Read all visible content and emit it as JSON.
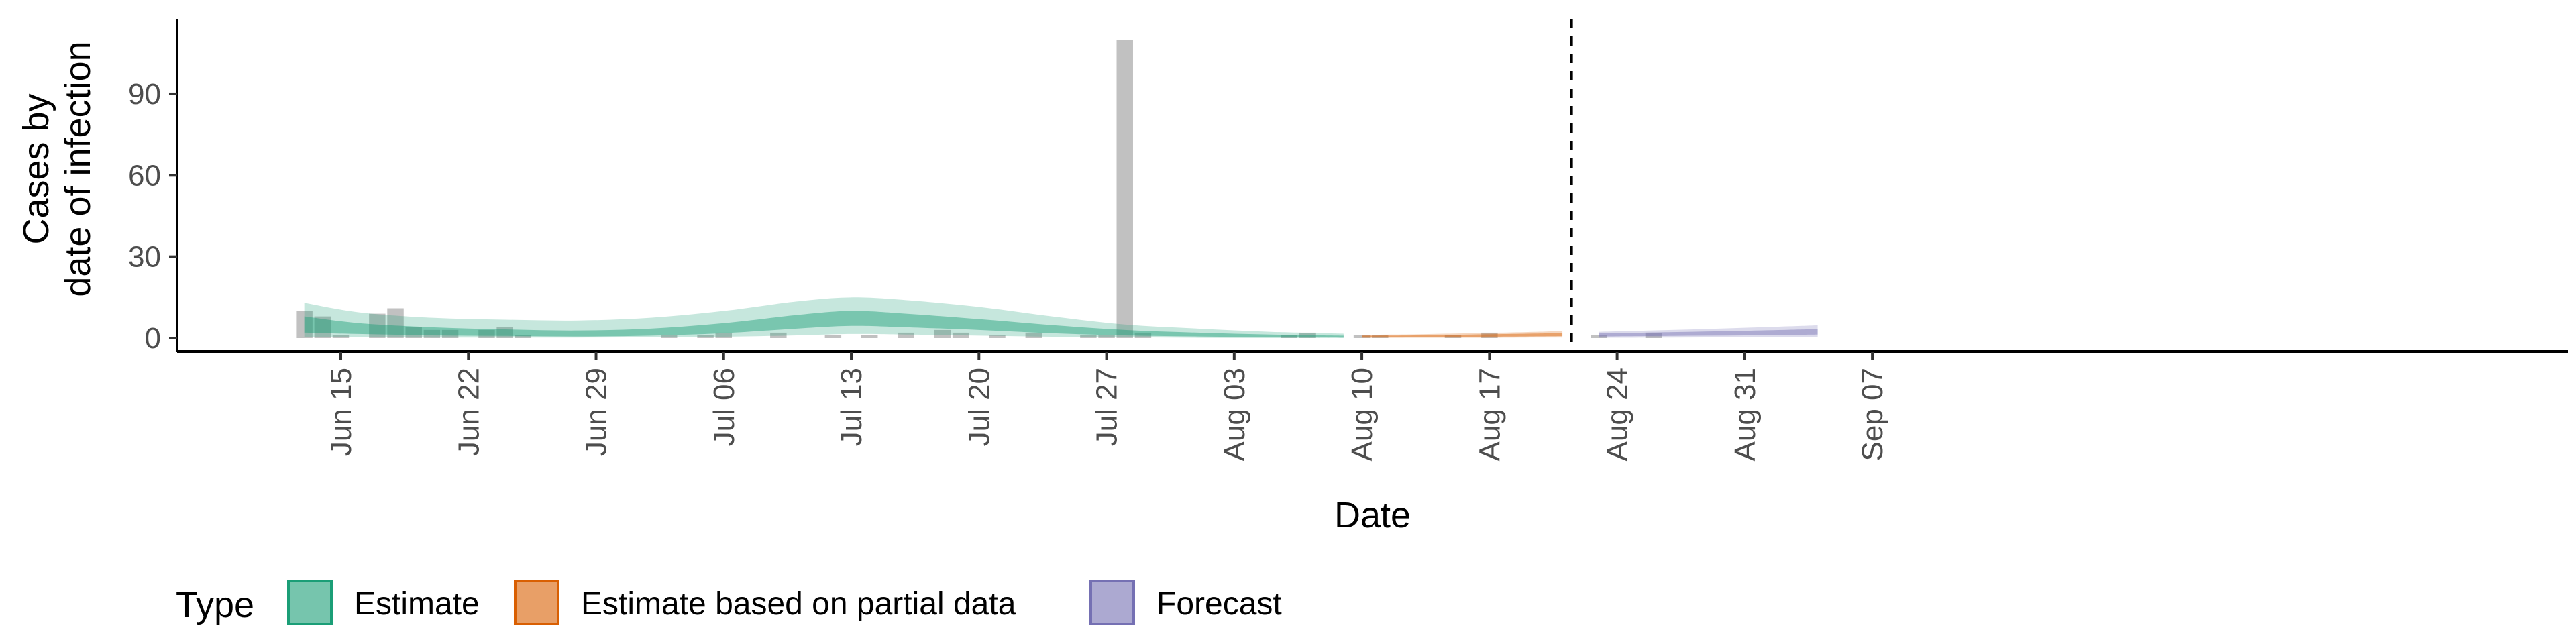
{
  "chart_data": {
    "type": "area",
    "title": "",
    "xlabel": "Date",
    "ylabel_lines": [
      "Cases by",
      "date of infection"
    ],
    "ylim": [
      -5,
      117
    ],
    "yticks": [
      0,
      30,
      60,
      90
    ],
    "x_start": "2020-06-10",
    "x_end": "2020-09-11",
    "xticks": [
      {
        "label": "Jun 15",
        "day": 5
      },
      {
        "label": "Jun 22",
        "day": 12
      },
      {
        "label": "Jun 29",
        "day": 19
      },
      {
        "label": "Jul 06",
        "day": 26
      },
      {
        "label": "Jul 13",
        "day": 33
      },
      {
        "label": "Jul 20",
        "day": 40
      },
      {
        "label": "Jul 27",
        "day": 47
      },
      {
        "label": "Aug 03",
        "day": 54
      },
      {
        "label": "Aug 10",
        "day": 61
      },
      {
        "label": "Aug 17",
        "day": 68
      },
      {
        "label": "Aug 24",
        "day": 75
      },
      {
        "label": "Aug 31",
        "day": 82
      },
      {
        "label": "Sep 07",
        "day": 89
      }
    ],
    "vline_day": 72.5,
    "reported_cases": {
      "start_day": 3,
      "values": [
        10,
        8,
        1,
        0,
        9,
        11,
        4,
        3,
        3,
        0,
        3,
        4,
        1,
        0,
        0,
        0,
        0,
        0,
        0,
        0,
        1,
        0,
        1,
        2,
        0,
        0,
        2,
        0,
        0,
        1,
        0,
        1,
        0,
        2,
        0,
        3,
        2,
        0,
        1,
        0,
        2,
        0,
        0,
        1,
        1,
        110,
        2,
        0,
        0,
        0,
        0,
        0,
        0,
        0,
        1,
        2,
        0,
        0,
        1,
        1,
        0,
        0,
        0,
        1,
        0,
        2,
        0,
        0,
        0,
        0,
        0,
        1,
        0,
        0,
        2
      ]
    },
    "series": [
      {
        "name": "Estimate",
        "color": "#1b9e77",
        "days": [
          3,
          6,
          10,
          14,
          18,
          22,
          26,
          30,
          33,
          36,
          40,
          44,
          48,
          52,
          56,
          60
        ],
        "median": [
          5.0,
          3.5,
          2.5,
          1.8,
          1.5,
          2.0,
          3.5,
          6.0,
          7.5,
          6.5,
          5.0,
          3.2,
          2.0,
          1.2,
          0.8,
          0.6
        ],
        "inner_lo": [
          2.0,
          1.5,
          1.0,
          0.8,
          0.6,
          0.9,
          1.8,
          3.5,
          4.5,
          4.0,
          3.0,
          1.8,
          1.0,
          0.6,
          0.3,
          0.2
        ],
        "inner_hi": [
          8.0,
          5.5,
          4.0,
          3.2,
          2.8,
          3.5,
          5.5,
          8.5,
          10.0,
          9.0,
          7.0,
          4.8,
          3.0,
          2.0,
          1.3,
          0.9
        ],
        "outer_lo": [
          0.5,
          0.3,
          0.2,
          0.2,
          0.2,
          0.3,
          0.5,
          1.0,
          1.5,
          1.3,
          0.9,
          0.5,
          0.3,
          0.1,
          0.0,
          0.0
        ],
        "outer_hi": [
          13.0,
          9.5,
          7.5,
          6.8,
          6.5,
          7.5,
          10.0,
          13.5,
          15.0,
          14.0,
          11.5,
          8.0,
          5.0,
          3.5,
          2.3,
          1.6
        ]
      },
      {
        "name": "Estimate based on partial data",
        "color": "#d95f02",
        "days": [
          61,
          64,
          67,
          70,
          72
        ],
        "median": [
          0.6,
          0.7,
          0.9,
          1.1,
          1.3
        ],
        "inner_lo": [
          0.3,
          0.4,
          0.5,
          0.6,
          0.7
        ],
        "inner_hi": [
          0.9,
          1.0,
          1.3,
          1.6,
          1.9
        ],
        "outer_lo": [
          0.0,
          0.1,
          0.1,
          0.2,
          0.2
        ],
        "outer_hi": [
          1.2,
          1.4,
          1.8,
          2.2,
          2.6
        ]
      },
      {
        "name": "Forecast",
        "color": "#7570b3",
        "days": [
          74,
          78,
          82,
          86
        ],
        "median": [
          1.1,
          1.4,
          1.8,
          2.3
        ],
        "inner_lo": [
          0.6,
          0.8,
          1.0,
          1.3
        ],
        "inner_hi": [
          1.7,
          2.2,
          2.7,
          3.3
        ],
        "outer_lo": [
          0.1,
          0.2,
          0.3,
          0.4
        ],
        "outer_hi": [
          2.3,
          3.0,
          3.8,
          4.7
        ]
      }
    ],
    "legend": {
      "title": "Type",
      "position": "bottom",
      "items": [
        {
          "label": "Estimate",
          "color": "#1b9e77"
        },
        {
          "label": "Estimate based on partial data",
          "color": "#d95f02"
        },
        {
          "label": "Forecast",
          "color": "#7570b3"
        }
      ]
    }
  }
}
